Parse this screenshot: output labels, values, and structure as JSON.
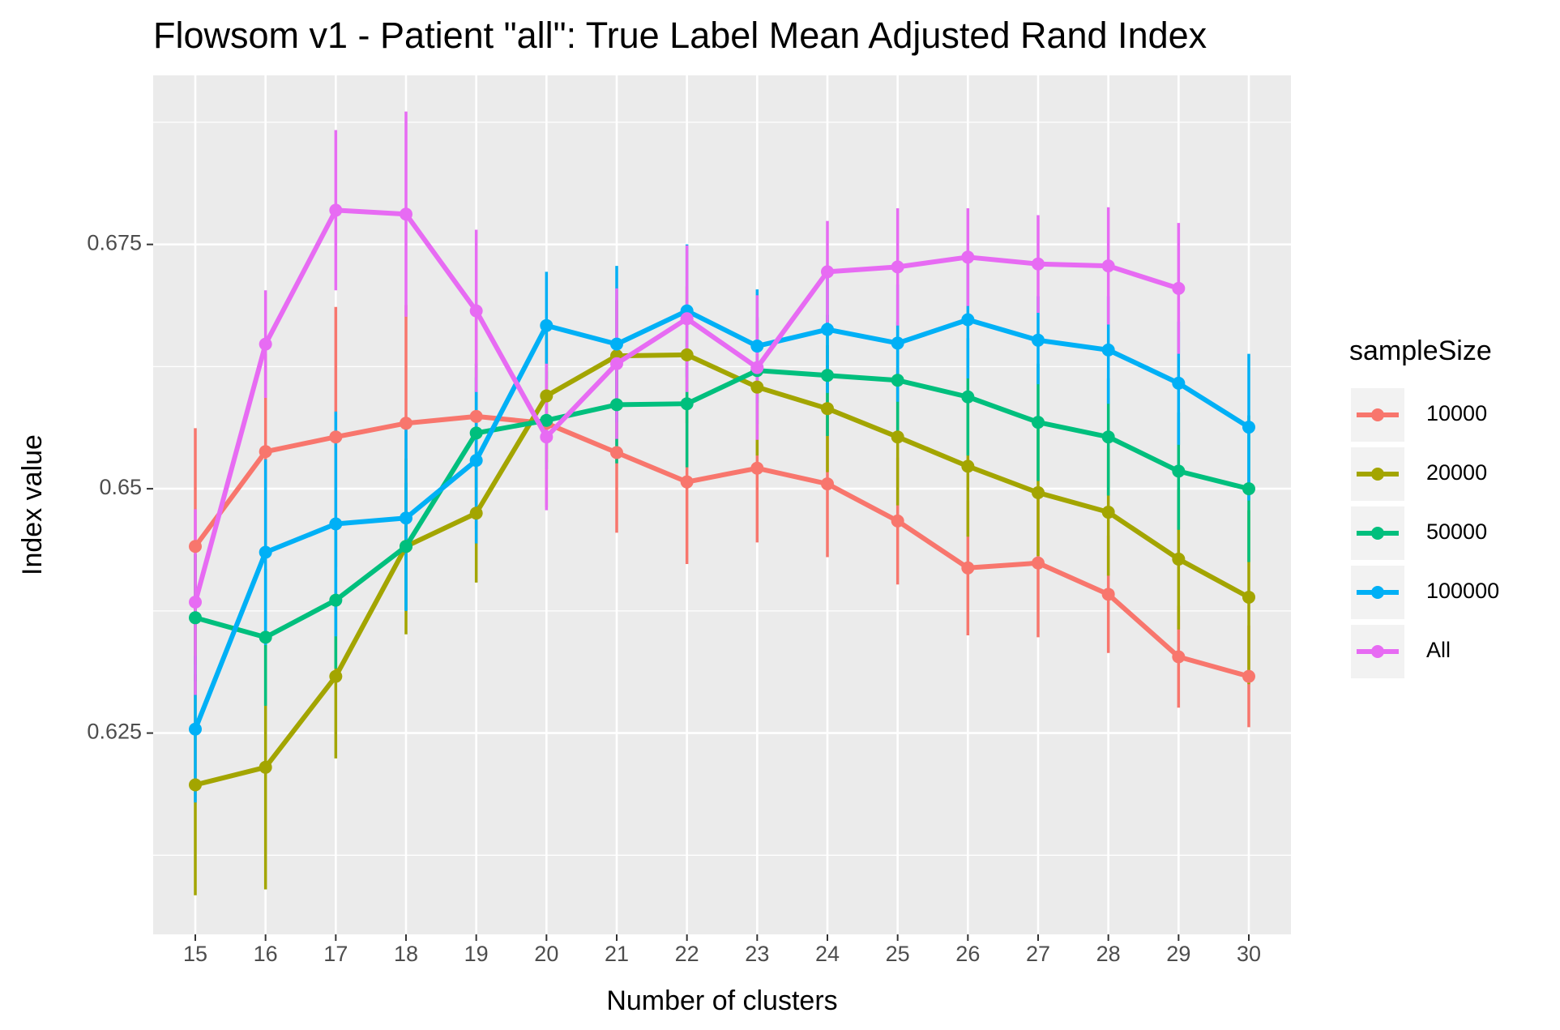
{
  "chart_data": {
    "type": "line",
    "title": "Flowsom v1 - Patient \"all\": True Label Mean Adjusted Rand Index",
    "x_label": "Number of clusters",
    "y_label": "Index value",
    "legend_title": "sampleSize",
    "categories": [
      "15",
      "16",
      "17",
      "18",
      "19",
      "20",
      "21",
      "22",
      "23",
      "24",
      "25",
      "26",
      "27",
      "28",
      "29",
      "30"
    ],
    "ylim": [
      0.6044,
      0.6923
    ],
    "yticks": [
      0.625,
      0.65,
      0.675
    ],
    "grid": true,
    "series": [
      {
        "name": "10000",
        "color": "#F8766D",
        "values": [
          0.6441,
          0.6538,
          0.6553,
          0.6567,
          0.6574,
          0.6567,
          0.6537,
          0.6507,
          0.6521,
          0.6505,
          0.6467,
          0.6419,
          0.6424,
          0.6392,
          0.6328,
          0.6308
        ],
        "errors": [
          0.0121,
          0.01,
          0.0133,
          0.0121,
          0.0115,
          0.0086,
          0.0082,
          0.0084,
          0.0076,
          0.0075,
          0.0065,
          0.0069,
          0.0076,
          0.006,
          0.0052,
          0.0052
        ]
      },
      {
        "name": "20000",
        "color": "#A3A500",
        "values": [
          0.6197,
          0.6215,
          0.6308,
          0.6441,
          0.6475,
          0.6595,
          0.6636,
          0.6637,
          0.6604,
          0.6582,
          0.6553,
          0.6523,
          0.6496,
          0.6476,
          0.6428,
          0.6389
        ],
        "errors": [
          0.0113,
          0.0125,
          0.0084,
          0.009,
          0.0071,
          0.0068,
          0.0057,
          0.007,
          0.007,
          0.0065,
          0.007,
          0.0072,
          0.0065,
          0.0065,
          0.0072,
          0.0089
        ]
      },
      {
        "name": "50000",
        "color": "#00BF7D",
        "values": [
          0.6368,
          0.6348,
          0.6386,
          0.6441,
          0.6557,
          0.657,
          0.6586,
          0.6587,
          0.6621,
          0.6616,
          0.6611,
          0.6594,
          0.6568,
          0.6553,
          0.6518,
          0.65
        ],
        "errors": [
          0.0065,
          0.007,
          0.007,
          0.0065,
          0.0071,
          0.005,
          0.006,
          0.0065,
          0.0055,
          0.0062,
          0.006,
          0.006,
          0.006,
          0.006,
          0.006,
          0.0075
        ]
      },
      {
        "name": "100000",
        "color": "#00B0F6",
        "values": [
          0.6254,
          0.6435,
          0.6464,
          0.647,
          0.6529,
          0.6667,
          0.6648,
          0.6682,
          0.6646,
          0.6663,
          0.6649,
          0.6673,
          0.6652,
          0.6642,
          0.6608,
          0.6563
        ],
        "errors": [
          0.0075,
          0.0095,
          0.0115,
          0.0095,
          0.0085,
          0.0055,
          0.008,
          0.0068,
          0.0058,
          0.0065,
          0.006,
          0.006,
          0.0045,
          0.0055,
          0.0063,
          0.0075
        ]
      },
      {
        "name": "All",
        "color": "#E76BF3",
        "values": [
          0.6384,
          0.6648,
          0.6785,
          0.6781,
          0.6682,
          0.6553,
          0.6628,
          0.6674,
          0.6624,
          0.6722,
          0.6727,
          0.6737,
          0.673,
          0.6728,
          0.6705,
          null
        ],
        "errors": [
          0.0095,
          0.0055,
          0.0082,
          0.0105,
          0.0083,
          0.0075,
          0.0077,
          0.0075,
          0.0074,
          0.0052,
          0.006,
          0.005,
          0.005,
          0.006,
          0.0067,
          null
        ]
      }
    ]
  }
}
